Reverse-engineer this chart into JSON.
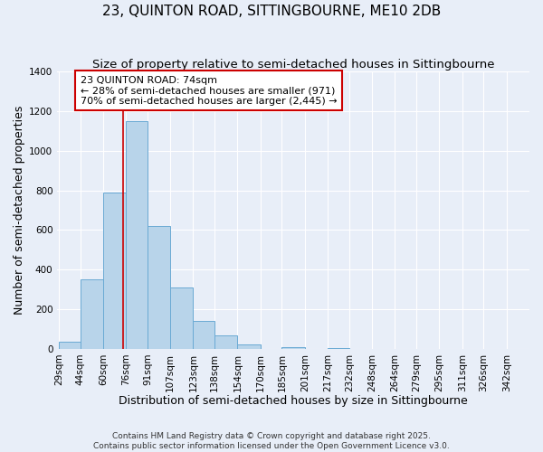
{
  "title": "23, QUINTON ROAD, SITTINGBOURNE, ME10 2DB",
  "subtitle": "Size of property relative to semi-detached houses in Sittingbourne",
  "xlabel": "Distribution of semi-detached houses by size in Sittingbourne",
  "ylabel": "Number of semi-detached properties",
  "bin_labels": [
    "29sqm",
    "44sqm",
    "60sqm",
    "76sqm",
    "91sqm",
    "107sqm",
    "123sqm",
    "138sqm",
    "154sqm",
    "170sqm",
    "185sqm",
    "201sqm",
    "217sqm",
    "232sqm",
    "248sqm",
    "264sqm",
    "279sqm",
    "295sqm",
    "311sqm",
    "326sqm",
    "342sqm"
  ],
  "bin_edges": [
    29,
    44,
    60,
    76,
    91,
    107,
    123,
    138,
    154,
    170,
    185,
    201,
    217,
    232,
    248,
    264,
    279,
    295,
    311,
    326,
    342
  ],
  "bar_heights": [
    35,
    350,
    790,
    1150,
    620,
    310,
    140,
    70,
    20,
    0,
    10,
    0,
    5,
    0,
    0,
    0,
    0,
    0,
    0,
    0
  ],
  "bar_color": "#b8d4ea",
  "bar_edge_color": "#6aaad4",
  "property_line_x": 74,
  "property_line_color": "#cc0000",
  "annotation_title": "23 QUINTON ROAD: 74sqm",
  "annotation_line1": "← 28% of semi-detached houses are smaller (971)",
  "annotation_line2": "70% of semi-detached houses are larger (2,445) →",
  "annotation_box_color": "#ffffff",
  "annotation_box_edge": "#cc0000",
  "ylim": [
    0,
    1400
  ],
  "footer1": "Contains HM Land Registry data © Crown copyright and database right 2025.",
  "footer2": "Contains public sector information licensed under the Open Government Licence v3.0.",
  "background_color": "#e8eef8",
  "grid_color": "#ffffff",
  "title_fontsize": 11,
  "subtitle_fontsize": 9.5,
  "axis_label_fontsize": 9,
  "tick_fontsize": 7.5,
  "footer_fontsize": 6.5,
  "annot_fontsize": 8
}
